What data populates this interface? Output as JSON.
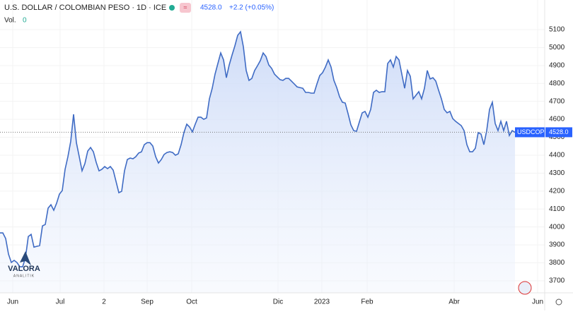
{
  "chart_data": {
    "type": "area",
    "title": "U.S. DOLLAR / COLOMBIAN PESO · 1D · ICE",
    "change": "+2.2 (+0.05%)",
    "volume_label": "Vol.",
    "volume": 0,
    "symbol": "USDCOP",
    "last_price": {
      "value": 4528.0,
      "label": "4528.0"
    },
    "logo": "VALORA",
    "logo_sub": "ANALITIK",
    "color": "#3f6bc4",
    "values": [
      3967,
      3967,
      3936,
      3849,
      3802,
      3814,
      3802,
      3778,
      3778,
      3829,
      3947,
      3959,
      3888,
      3892,
      3896,
      4006,
      4014,
      4105,
      4124,
      4093,
      4132,
      4183,
      4203,
      4321,
      4392,
      4478,
      4628,
      4470,
      4392,
      4313,
      4353,
      4423,
      4443,
      4419,
      4360,
      4313,
      4321,
      4337,
      4325,
      4337,
      4317,
      4254,
      4191,
      4199,
      4313,
      4376,
      4384,
      4380,
      4392,
      4412,
      4419,
      4459,
      4470,
      4470,
      4451,
      4392,
      4356,
      4376,
      4404,
      4415,
      4419,
      4415,
      4400,
      4408,
      4459,
      4526,
      4573,
      4557,
      4530,
      4573,
      4612,
      4612,
      4600,
      4608,
      4714,
      4773,
      4852,
      4911,
      4970,
      4931,
      4832,
      4903,
      4958,
      5009,
      5068,
      5088,
      5005,
      4872,
      4817,
      4828,
      4872,
      4899,
      4927,
      4970,
      4950,
      4903,
      4884,
      4852,
      4836,
      4821,
      4817,
      4828,
      4828,
      4813,
      4797,
      4781,
      4777,
      4773,
      4750,
      4750,
      4746,
      4746,
      4797,
      4844,
      4860,
      4891,
      4931,
      4891,
      4817,
      4777,
      4726,
      4695,
      4691,
      4632,
      4569,
      4537,
      4533,
      4585,
      4636,
      4644,
      4612,
      4655,
      4750,
      4762,
      4750,
      4754,
      4754,
      4911,
      4931,
      4891,
      4950,
      4931,
      4852,
      4773,
      4872,
      4840,
      4714,
      4734,
      4754,
      4714,
      4773,
      4872,
      4825,
      4832,
      4813,
      4762,
      4714,
      4655,
      4636,
      4644,
      4604,
      4589,
      4577,
      4565,
      4537,
      4459,
      4419,
      4419,
      4439,
      4526,
      4518,
      4459,
      4537,
      4655,
      4695,
      4577,
      4537,
      4589,
      4537,
      4589,
      4510,
      4537,
      4528
    ],
    "xlim": [
      0,
      192.5
    ],
    "xticks": [
      {
        "value": 4.5,
        "label": "Jun"
      },
      {
        "value": 21.25,
        "label": "Jul"
      },
      {
        "value": 36.75,
        "label": "2"
      },
      {
        "value": 52,
        "label": "Sep"
      },
      {
        "value": 67.75,
        "label": "Oct"
      },
      {
        "value": 98.25,
        "label": "Dic"
      },
      {
        "value": 113.75,
        "label": "2023"
      },
      {
        "value": 129.75,
        "label": "Feb"
      },
      {
        "value": 160.5,
        "label": "Abr"
      },
      {
        "value": 190,
        "label": "Jun"
      }
    ],
    "ylim": [
      3633,
      5265
    ],
    "yticks": [
      3700,
      3800,
      3900,
      4000,
      4100,
      4200,
      4300,
      4400,
      4500,
      4600,
      4700,
      4800,
      4900,
      5000,
      5100
    ]
  }
}
